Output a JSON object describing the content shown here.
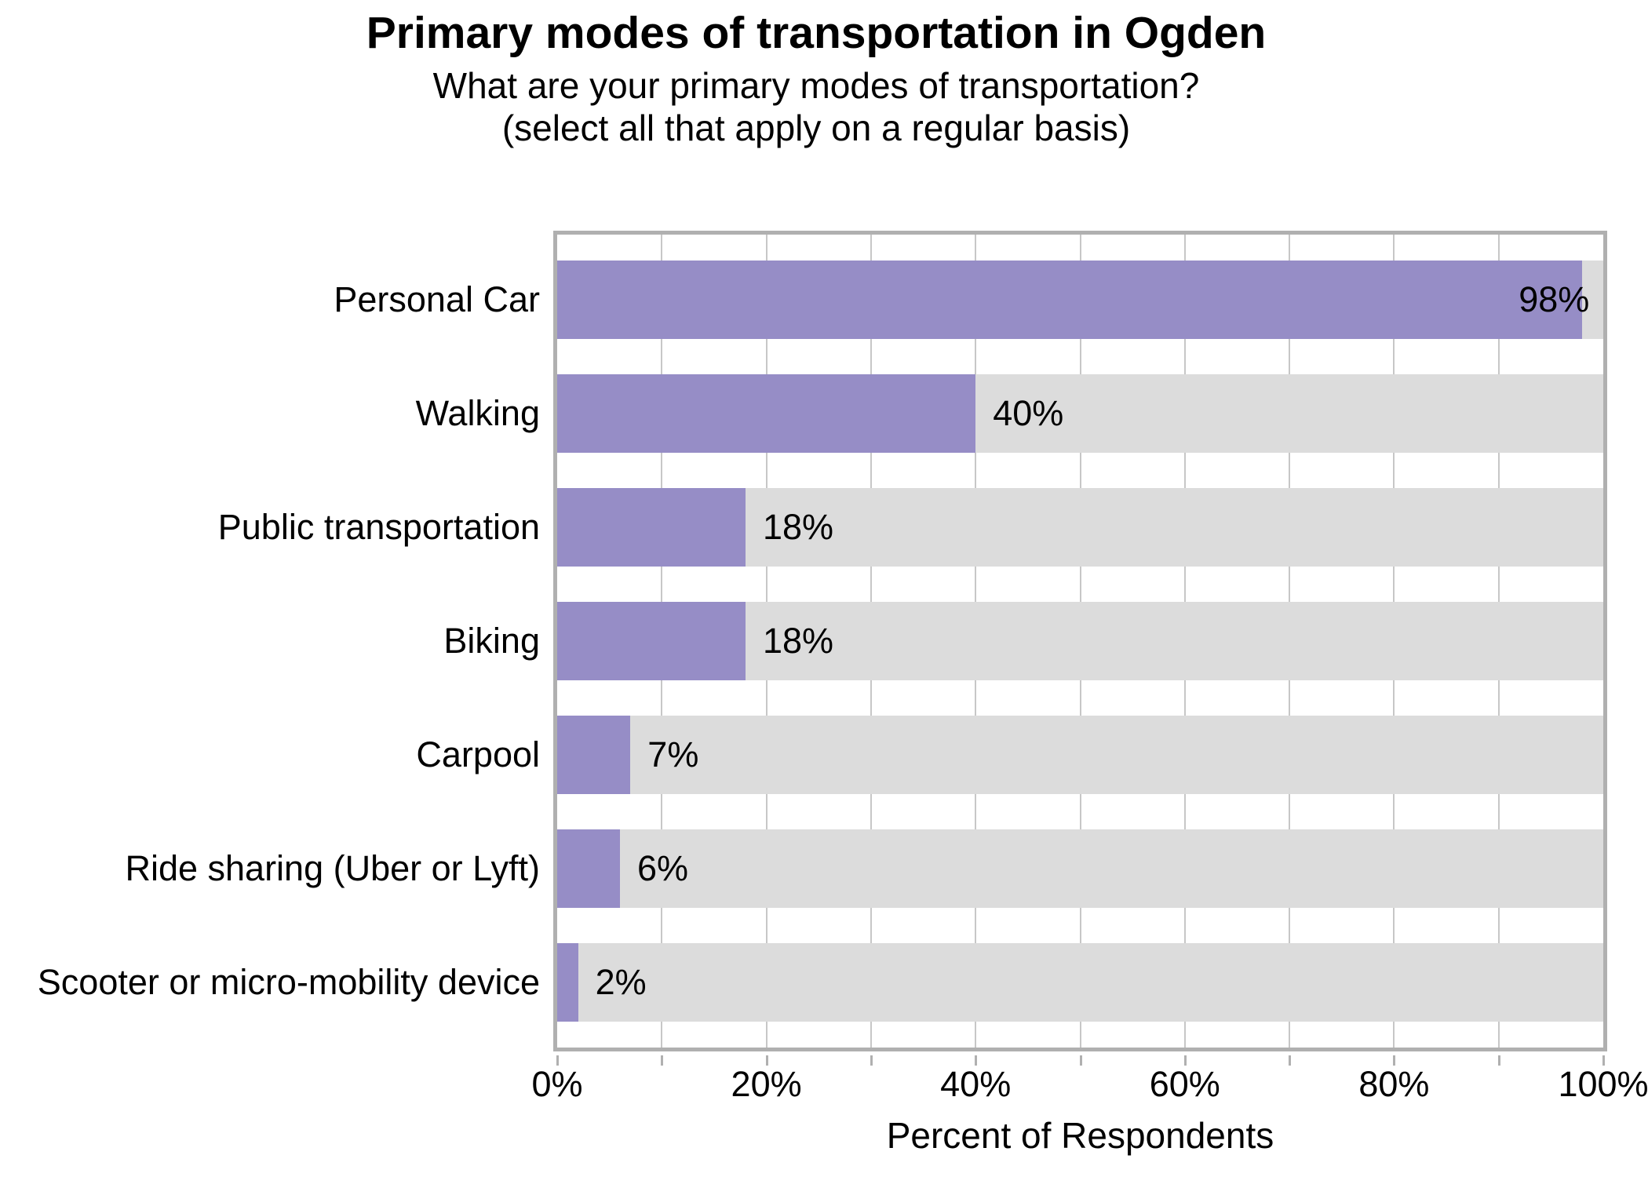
{
  "chart_data": {
    "type": "bar",
    "orientation": "horizontal",
    "title": "Primary modes of transportation in Ogden",
    "subtitle_line1": "What are your primary modes of transportation?",
    "subtitle_line2": "(select all that apply on a regular basis)",
    "xlabel": "Percent of Respondents",
    "categories": [
      "Personal Car",
      "Walking",
      "Public transportation",
      "Biking",
      "Carpool",
      "Ride sharing (Uber or Lyft)",
      "Scooter or micro-mobility device"
    ],
    "values": [
      98,
      40,
      18,
      18,
      7,
      6,
      2
    ],
    "value_labels": [
      "98%",
      "40%",
      "18%",
      "18%",
      "7%",
      "6%",
      "2%"
    ],
    "xlim": [
      0,
      100
    ],
    "x_major_ticks": [
      0,
      20,
      40,
      60,
      80,
      100
    ],
    "x_tick_labels": [
      "0%",
      "20%",
      "40%",
      "60%",
      "80%",
      "100%"
    ],
    "x_minor_ticks": [
      10,
      30,
      50,
      70,
      90
    ],
    "grid": "vertical lines every 10%, shown on white panel behind bars",
    "legend": "none",
    "colors": {
      "bar": "#968DC6",
      "track": "#DCDCDC",
      "gridline": "#C7C7C7",
      "axis_border": "#B0B0B0",
      "tick": "#B0B0B0",
      "text": "#000000",
      "background": "#FFFFFF"
    }
  }
}
